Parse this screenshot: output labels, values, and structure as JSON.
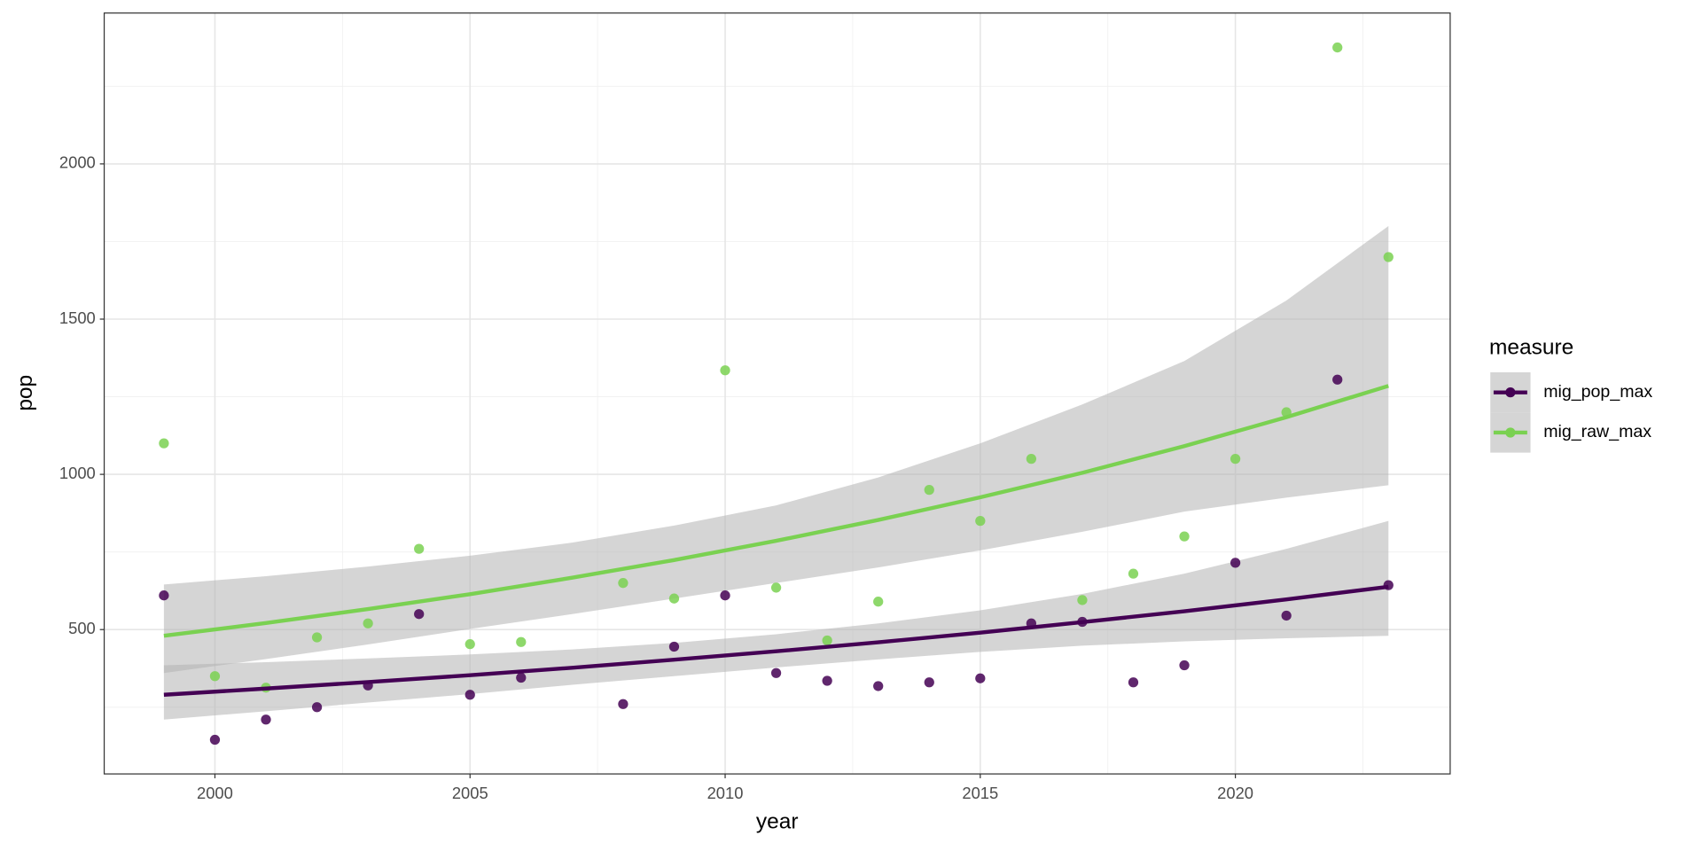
{
  "chart_data": {
    "type": "scatter",
    "xlabel": "year",
    "ylabel": "pop",
    "legend_title": "measure",
    "legend_position": "right",
    "grid": true,
    "xlim": [
      1997.83,
      2024.21
    ],
    "ylim": [
      35,
      2486
    ],
    "xticks": [
      2000,
      2005,
      2010,
      2015,
      2020
    ],
    "yticks": [
      500,
      1000,
      1500,
      2000
    ],
    "xminor": [
      2002.5,
      2007.5,
      2012.5,
      2017.5,
      2022.5
    ],
    "yminor": [
      250,
      750,
      1250,
      1750,
      2250
    ],
    "band_color": "#b3b3b3",
    "x": [
      1999,
      2000,
      2001,
      2002,
      2003,
      2004,
      2005,
      2006,
      2008,
      2009,
      2010,
      2011,
      2012,
      2013,
      2014,
      2015,
      2016,
      2017,
      2018,
      2019,
      2020,
      2021,
      2022,
      2023
    ],
    "fit_x": [
      1999,
      2001,
      2003,
      2005,
      2007,
      2009,
      2011,
      2013,
      2015,
      2017,
      2019,
      2021,
      2023
    ],
    "series": [
      {
        "name": "mig_pop_max",
        "color": "#440154",
        "values": [
          610,
          145,
          210,
          250,
          320,
          550,
          290,
          345,
          260,
          445,
          610,
          360,
          335,
          318,
          330,
          343,
          520,
          525,
          330,
          385,
          715,
          545,
          1305,
          643
        ],
        "fit": [
          290,
          310,
          331,
          353,
          377,
          403,
          430,
          459,
          490,
          524,
          559,
          597,
          638
        ],
        "fit_lower": [
          210,
          237,
          265,
          292,
          322,
          350,
          378,
          404,
          428,
          448,
          462,
          472,
          480
        ],
        "fit_upper": [
          385,
          395,
          407,
          420,
          436,
          457,
          485,
          520,
          562,
          615,
          680,
          760,
          850
        ]
      },
      {
        "name": "mig_raw_max",
        "color": "#7ad151",
        "values": [
          1100,
          350,
          313,
          475,
          520,
          760,
          453,
          460,
          650,
          600,
          1335,
          635,
          465,
          590,
          950,
          850,
          1050,
          595,
          680,
          800,
          1050,
          1200,
          2375,
          1700
        ],
        "fit": [
          480,
          521,
          566,
          614,
          667,
          724,
          786,
          853,
          926,
          1005,
          1091,
          1184,
          1285
        ],
        "fit_lower": [
          360,
          405,
          452,
          502,
          550,
          600,
          650,
          700,
          755,
          815,
          880,
          925,
          965
        ],
        "fit_upper": [
          645,
          672,
          703,
          738,
          780,
          835,
          900,
          990,
          1100,
          1225,
          1365,
          1560,
          1800
        ]
      }
    ]
  }
}
